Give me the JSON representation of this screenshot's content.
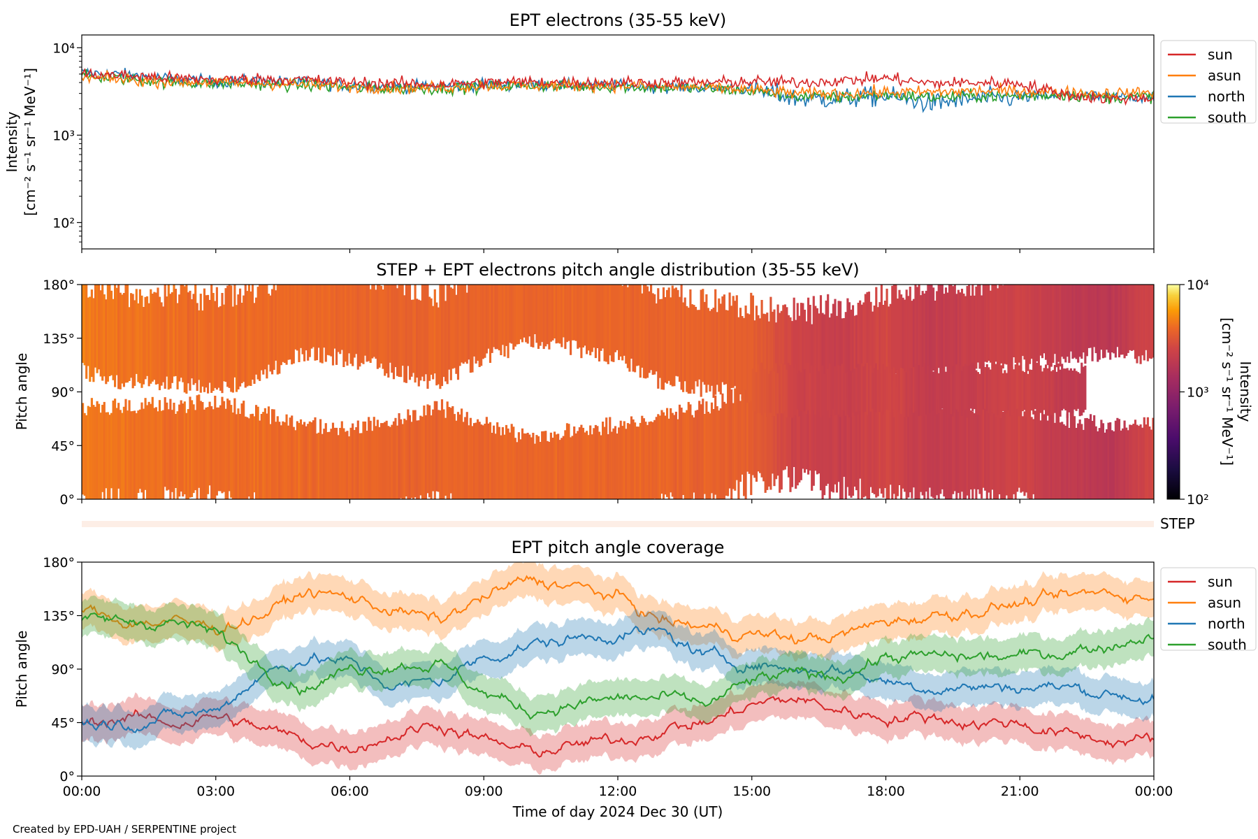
{
  "figure": {
    "footer": "Created by EPD-UAH / SERPENTINE project",
    "xlabel": "Time of day 2024 Dec 30 (UT)",
    "xticks": [
      "00:00",
      "03:00",
      "06:00",
      "09:00",
      "12:00",
      "15:00",
      "18:00",
      "21:00",
      "00:00"
    ]
  },
  "colors": {
    "sun": "#d62728",
    "asun": "#ff7f0e",
    "north": "#1f77b4",
    "south": "#2ca02c",
    "step": "#fdeee6"
  },
  "chart_data": [
    {
      "type": "line",
      "title": "EPT electrons (35-55 keV)",
      "ylabel_line1": "Intensity",
      "ylabel_line2": "[cm⁻² s⁻¹ sr⁻¹ MeV⁻¹]",
      "yscale": "log",
      "ylim": [
        50,
        14000
      ],
      "yticks": [
        {
          "value": 100,
          "label": "10²"
        },
        {
          "value": 1000,
          "label": "10³"
        },
        {
          "value": 10000,
          "label": "10⁴"
        }
      ],
      "x_hours": [
        0,
        1,
        2,
        3,
        4,
        5,
        6,
        7,
        8,
        9,
        10,
        11,
        12,
        13,
        14,
        15,
        16,
        17,
        18,
        19,
        20,
        21,
        22,
        23,
        24
      ],
      "series": [
        {
          "name": "sun",
          "values": [
            5000,
            4800,
            4500,
            4300,
            4400,
            4300,
            4000,
            3900,
            3800,
            4000,
            4100,
            4000,
            4000,
            4000,
            4000,
            4100,
            4000,
            4200,
            4500,
            3900,
            4000,
            3900,
            2900,
            2600,
            2700
          ]
        },
        {
          "name": "asun",
          "values": [
            4500,
            4300,
            4100,
            4000,
            3900,
            3800,
            3600,
            3500,
            3500,
            3700,
            3700,
            3700,
            3700,
            3600,
            3500,
            3300,
            3000,
            3000,
            3100,
            3100,
            3200,
            3200,
            3100,
            3000,
            3100
          ]
        },
        {
          "name": "north",
          "values": [
            5200,
            4900,
            4400,
            4100,
            4200,
            4000,
            3700,
            3600,
            3600,
            3800,
            3800,
            3700,
            3700,
            3600,
            3500,
            3300,
            2600,
            2600,
            2800,
            2300,
            2600,
            2700,
            2900,
            2700,
            2800
          ]
        },
        {
          "name": "south",
          "values": [
            4700,
            4400,
            4000,
            3900,
            3800,
            3700,
            3500,
            3400,
            3400,
            3600,
            3700,
            3600,
            3600,
            3500,
            3400,
            3200,
            2800,
            2700,
            2900,
            2700,
            2800,
            2800,
            2900,
            2700,
            2800
          ]
        }
      ],
      "legend": [
        "sun",
        "asun",
        "north",
        "south"
      ],
      "legend_position": "outside right"
    },
    {
      "type": "heatmap",
      "title": "STEP + EPT electrons pitch angle distribution (35-55 keV)",
      "ylabel": "Pitch angle",
      "ylim": [
        0,
        180
      ],
      "yticks": [
        "0°",
        "45°",
        "90°",
        "135°",
        "180°"
      ],
      "colorbar": {
        "label_line1": "Intensity",
        "label_line2": "[cm⁻² s⁻¹ sr⁻¹ MeV⁻¹]",
        "scale": "log",
        "range": [
          100,
          10000
        ],
        "ticks": [
          {
            "value": 100,
            "label": "10²"
          },
          {
            "value": 1000,
            "label": "10³"
          },
          {
            "value": 10000,
            "label": "10⁴"
          }
        ],
        "colormap": "inferno"
      },
      "x_hours": [
        0,
        1,
        2,
        3,
        4,
        5,
        6,
        7,
        8,
        9,
        10,
        11,
        12,
        13,
        14,
        15,
        16,
        17,
        18,
        19,
        20,
        21,
        22,
        23,
        24
      ],
      "intensity": [
        4500,
        4300,
        4100,
        4000,
        4000,
        3900,
        3800,
        3700,
        3700,
        3800,
        3800,
        3800,
        3800,
        3700,
        3700,
        3500,
        2400,
        2200,
        2600,
        2000,
        2200,
        2500,
        2000,
        1800,
        2600
      ]
    },
    {
      "type": "area",
      "strip_label": "STEP",
      "description_values": [
        0,
        0
      ]
    },
    {
      "type": "line",
      "title": "EPT pitch angle coverage",
      "ylabel": "Pitch angle",
      "ylim": [
        0,
        180
      ],
      "yticks": [
        "0°",
        "45°",
        "90°",
        "135°",
        "180°"
      ],
      "x_hours": [
        0,
        1,
        2,
        3,
        4,
        5,
        6,
        7,
        8,
        9,
        10,
        11,
        12,
        13,
        14,
        15,
        16,
        17,
        18,
        19,
        20,
        21,
        22,
        23,
        24
      ],
      "band_halfwidth": 15,
      "series": [
        {
          "name": "sun",
          "values": [
            45,
            50,
            45,
            50,
            40,
            30,
            25,
            35,
            45,
            30,
            20,
            25,
            30,
            40,
            45,
            60,
            65,
            55,
            50,
            50,
            45,
            45,
            35,
            30,
            30
          ]
        },
        {
          "name": "asun",
          "values": [
            140,
            130,
            130,
            125,
            135,
            155,
            150,
            140,
            130,
            150,
            165,
            160,
            150,
            130,
            125,
            120,
            115,
            118,
            130,
            135,
            140,
            145,
            150,
            155,
            150
          ]
        },
        {
          "name": "north",
          "values": [
            45,
            45,
            50,
            55,
            85,
            100,
            95,
            75,
            80,
            100,
            110,
            115,
            120,
            120,
            100,
            95,
            90,
            90,
            80,
            75,
            75,
            75,
            75,
            70,
            65
          ]
        },
        {
          "name": "south",
          "values": [
            130,
            130,
            130,
            120,
            95,
            75,
            90,
            95,
            95,
            70,
            55,
            60,
            65,
            65,
            60,
            80,
            85,
            85,
            100,
            100,
            100,
            100,
            105,
            110,
            120
          ]
        }
      ],
      "legend": [
        "sun",
        "asun",
        "north",
        "south"
      ],
      "legend_position": "outside right"
    }
  ]
}
